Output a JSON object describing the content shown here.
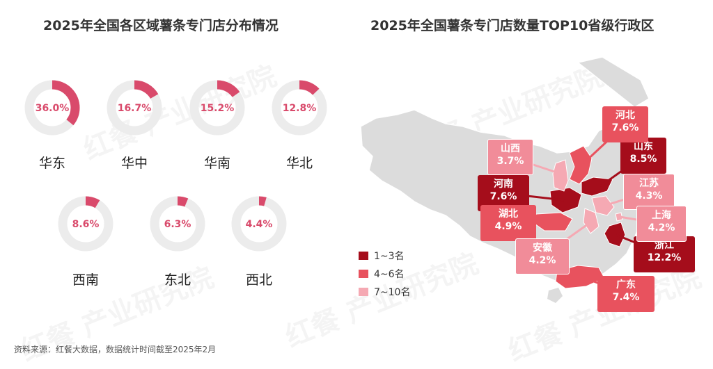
{
  "left_title": "2025年全国各区域薯条专门店分布情况",
  "right_title": "2025年全国薯条专门店数量TOP10省级行政区",
  "footer": "资料来源：红餐大数据，数据统计时间截至2025年2月",
  "watermark_text": "红餐 产业研究院",
  "colors": {
    "accent": "#d94a6b",
    "track": "#ececec",
    "rank1": "#a50d1b",
    "rank2": "#e8525e",
    "rank3": "#f5a9b3",
    "map_base": "#dcdcdc"
  },
  "chart_data": [
    {
      "type": "pie",
      "subtype": "donut",
      "title": "2025年全国各区域薯条专门店分布情况",
      "categories": [
        "华东",
        "华中",
        "华南",
        "华北",
        "西南",
        "东北",
        "西北"
      ],
      "values": [
        36.0,
        16.7,
        15.2,
        12.8,
        8.6,
        6.3,
        4.4
      ],
      "value_labels": [
        "36.0%",
        "16.7%",
        "15.2%",
        "12.8%",
        "8.6%",
        "6.3%",
        "4.4%"
      ],
      "unit": "%"
    },
    {
      "type": "map",
      "title": "2025年全国薯条专门店数量TOP10省级行政区",
      "categories": [
        "浙江",
        "山东",
        "河南",
        "河北",
        "广东",
        "湖北",
        "江苏",
        "上海",
        "安徽",
        "山西"
      ],
      "values": [
        12.2,
        8.5,
        7.6,
        7.6,
        7.4,
        4.9,
        4.3,
        4.2,
        4.2,
        3.7
      ],
      "value_labels": [
        "12.2%",
        "8.5%",
        "7.6%",
        "7.6%",
        "7.4%",
        "4.9%",
        "4.3%",
        "4.2%",
        "4.2%",
        "3.7%"
      ],
      "tier": [
        "1~3名",
        "1~3名",
        "1~3名",
        "4~6名",
        "4~6名",
        "4~6名",
        "7~10名",
        "7~10名",
        "7~10名",
        "7~10名"
      ],
      "legend": [
        "1~3名",
        "4~6名",
        "7~10名"
      ],
      "legend_position": "bottom-left",
      "unit": "%"
    }
  ]
}
